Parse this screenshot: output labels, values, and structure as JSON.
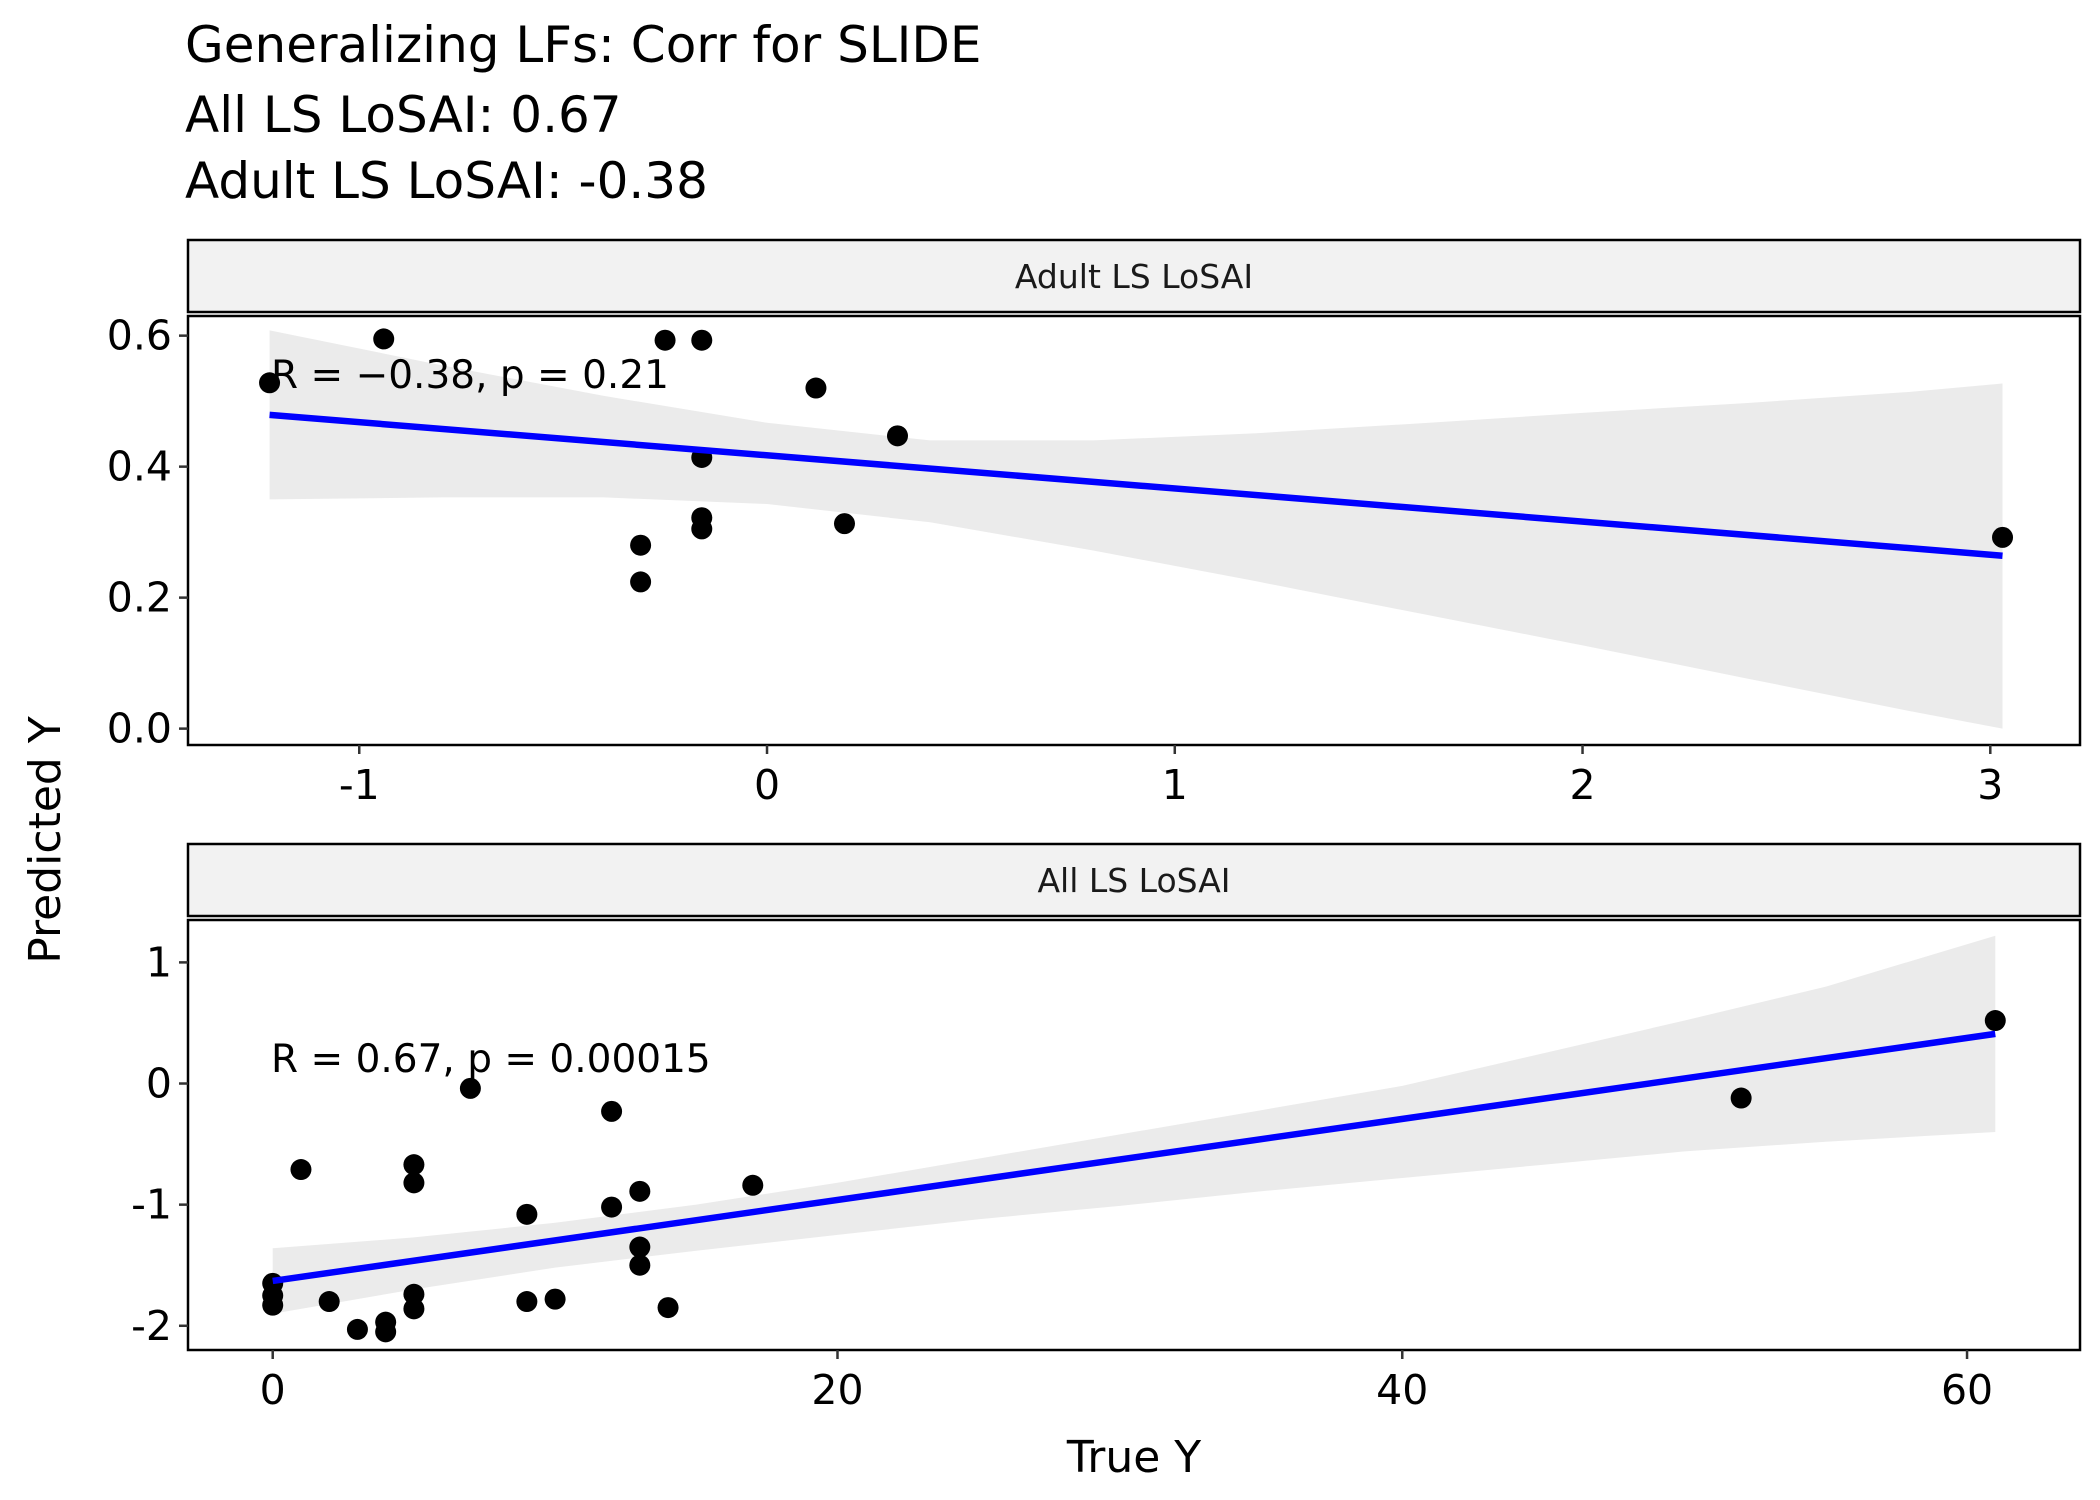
{
  "title_lines": [
    "Generalizing LFs: Corr for SLIDE",
    "All LS LoSAI: 0.67",
    "Adult LS LoSAI: -0.38"
  ],
  "x_axis_title": "True Y",
  "y_axis_title": "Predicted Y",
  "colors": {
    "fit_line": "#0000ff",
    "ribbon": "#ebebeb",
    "points": "#000000",
    "strip_fill": "#f2f2f2"
  },
  "chart_data": [
    {
      "type": "scatter",
      "panel": "Adult LS LoSAI",
      "annotation": "R = −0.38, p = 0.21",
      "xlim": [
        -1.42,
        3.22
      ],
      "ylim": [
        -0.025,
        0.63
      ],
      "x_ticks": [
        -1,
        0,
        1,
        2,
        3
      ],
      "x_tick_labels": [
        "-1",
        "0",
        "1",
        "2",
        "3"
      ],
      "y_ticks": [
        0.0,
        0.2,
        0.4,
        0.6
      ],
      "y_tick_labels": [
        "0.0",
        "0.2",
        "0.4",
        "0.6"
      ],
      "points": [
        {
          "x": -1.22,
          "y": 0.528
        },
        {
          "x": -0.94,
          "y": 0.595
        },
        {
          "x": -0.25,
          "y": 0.593
        },
        {
          "x": -0.16,
          "y": 0.593
        },
        {
          "x": 0.12,
          "y": 0.52
        },
        {
          "x": 0.32,
          "y": 0.447
        },
        {
          "x": -0.16,
          "y": 0.414
        },
        {
          "x": -0.16,
          "y": 0.322
        },
        {
          "x": -0.16,
          "y": 0.305
        },
        {
          "x": 0.19,
          "y": 0.313
        },
        {
          "x": -0.31,
          "y": 0.28
        },
        {
          "x": -0.31,
          "y": 0.224
        },
        {
          "x": 3.03,
          "y": 0.292
        }
      ],
      "fit": {
        "x": [
          -1.22,
          3.03
        ],
        "y": [
          0.479,
          0.264
        ]
      },
      "ribbon": {
        "x": [
          -1.22,
          -0.8,
          -0.4,
          0.0,
          0.4,
          0.8,
          1.2,
          1.6,
          2.0,
          2.4,
          2.8,
          3.03
        ],
        "lower": [
          0.35,
          0.353,
          0.353,
          0.343,
          0.315,
          0.272,
          0.225,
          0.176,
          0.127,
          0.077,
          0.027,
          0.0
        ],
        "upper": [
          0.608,
          0.555,
          0.508,
          0.467,
          0.44,
          0.44,
          0.451,
          0.466,
          0.482,
          0.497,
          0.514,
          0.527
        ]
      }
    },
    {
      "type": "scatter",
      "panel": "All LS LoSAI",
      "annotation": "R = 0.67, p = 0.00015",
      "xlim": [
        -3.0,
        64.0
      ],
      "ylim": [
        -2.2,
        1.35
      ],
      "x_ticks": [
        0,
        20,
        40,
        60
      ],
      "x_tick_labels": [
        "0",
        "20",
        "40",
        "60"
      ],
      "y_ticks": [
        -2,
        -1,
        0,
        1
      ],
      "y_tick_labels": [
        "-2",
        "-1",
        "0",
        "1"
      ],
      "points": [
        {
          "x": 0,
          "y": -1.65
        },
        {
          "x": 0,
          "y": -1.75
        },
        {
          "x": 0,
          "y": -1.83
        },
        {
          "x": 1,
          "y": -0.71
        },
        {
          "x": 2,
          "y": -1.8
        },
        {
          "x": 3,
          "y": -2.03
        },
        {
          "x": 4,
          "y": -1.97
        },
        {
          "x": 4,
          "y": -2.05
        },
        {
          "x": 5,
          "y": -1.74
        },
        {
          "x": 5,
          "y": -1.86
        },
        {
          "x": 5,
          "y": -0.67
        },
        {
          "x": 5,
          "y": -0.82
        },
        {
          "x": 7,
          "y": -0.04
        },
        {
          "x": 9,
          "y": -1.08
        },
        {
          "x": 9,
          "y": -1.8
        },
        {
          "x": 10,
          "y": -1.78
        },
        {
          "x": 12,
          "y": -0.23
        },
        {
          "x": 12,
          "y": -1.02
        },
        {
          "x": 13,
          "y": -0.89
        },
        {
          "x": 13,
          "y": -1.35
        },
        {
          "x": 13,
          "y": -1.5
        },
        {
          "x": 14,
          "y": -1.85
        },
        {
          "x": 17,
          "y": -0.84
        },
        {
          "x": 52,
          "y": -0.12
        },
        {
          "x": 61,
          "y": 0.52
        }
      ],
      "fit": {
        "x": [
          0,
          61
        ],
        "y": [
          -1.63,
          0.41
        ]
      },
      "ribbon": {
        "x": [
          0,
          5,
          10,
          15,
          20,
          25,
          30,
          35,
          40,
          45,
          50,
          55,
          61
        ],
        "lower": [
          -1.9,
          -1.7,
          -1.52,
          -1.38,
          -1.25,
          -1.12,
          -1.01,
          -0.89,
          -0.78,
          -0.67,
          -0.56,
          -0.48,
          -0.4
        ],
        "upper": [
          -1.36,
          -1.27,
          -1.15,
          -1.0,
          -0.82,
          -0.62,
          -0.42,
          -0.22,
          -0.02,
          0.25,
          0.52,
          0.8,
          1.22
        ]
      }
    }
  ]
}
